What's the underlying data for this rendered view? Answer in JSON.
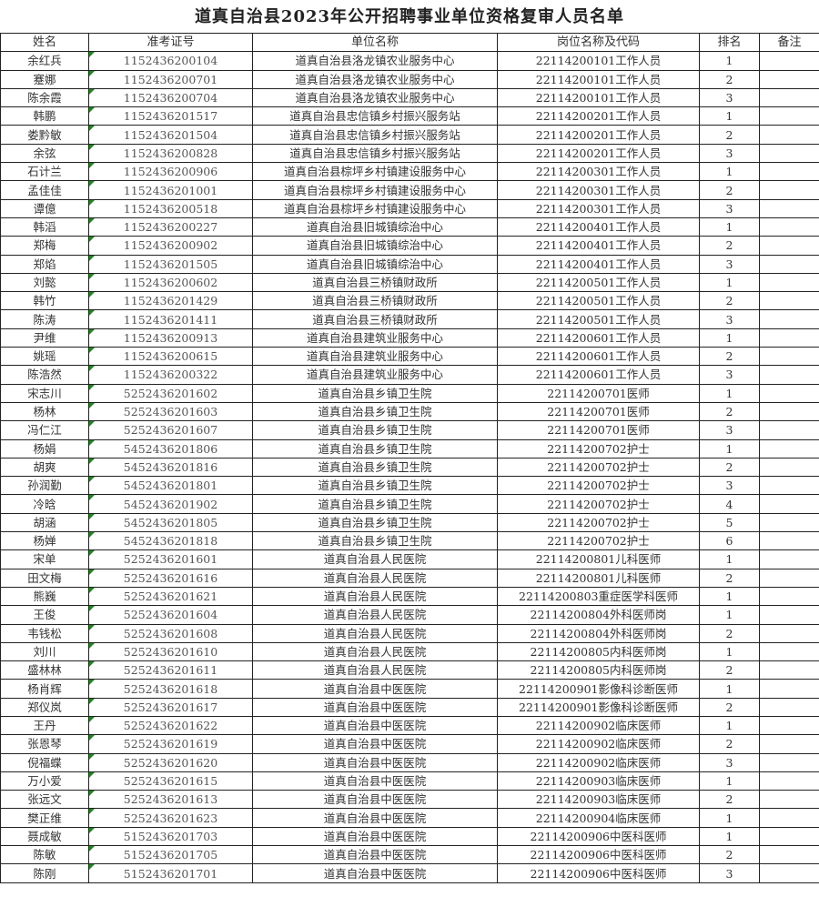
{
  "title": "道真自治县2023年公开招聘事业单位资格复审人员名单",
  "columns": [
    "姓名",
    "准考证号",
    "单位名称",
    "岗位名称及代码",
    "排名",
    "备注"
  ],
  "rows": [
    [
      "余红兵",
      "1152436200104",
      "道真自治县洛龙镇农业服务中心",
      "22114200101工作人员",
      "1",
      ""
    ],
    [
      "蹇娜",
      "1152436200701",
      "道真自治县洛龙镇农业服务中心",
      "22114200101工作人员",
      "2",
      ""
    ],
    [
      "陈余霞",
      "1152436200704",
      "道真自治县洛龙镇农业服务中心",
      "22114200101工作人员",
      "3",
      ""
    ],
    [
      "韩鹏",
      "1152436201517",
      "道真自治县忠信镇乡村振兴服务站",
      "22114200201工作人员",
      "1",
      ""
    ],
    [
      "娄黔敏",
      "1152436201504",
      "道真自治县忠信镇乡村振兴服务站",
      "22114200201工作人员",
      "2",
      ""
    ],
    [
      "余弦",
      "1152436200828",
      "道真自治县忠信镇乡村振兴服务站",
      "22114200201工作人员",
      "3",
      ""
    ],
    [
      "石计兰",
      "1152436200906",
      "道真自治县棕坪乡村镇建设服务中心",
      "22114200301工作人员",
      "1",
      ""
    ],
    [
      "孟佳佳",
      "1152436201001",
      "道真自治县棕坪乡村镇建设服务中心",
      "22114200301工作人员",
      "2",
      ""
    ],
    [
      "谭億",
      "1152436200518",
      "道真自治县棕坪乡村镇建设服务中心",
      "22114200301工作人员",
      "3",
      ""
    ],
    [
      "韩滔",
      "1152436200227",
      "道真自治县旧城镇综治中心",
      "22114200401工作人员",
      "1",
      ""
    ],
    [
      "郑梅",
      "1152436200902",
      "道真自治县旧城镇综治中心",
      "22114200401工作人员",
      "2",
      ""
    ],
    [
      "郑焰",
      "1152436201505",
      "道真自治县旧城镇综治中心",
      "22114200401工作人员",
      "3",
      ""
    ],
    [
      "刘懿",
      "1152436200602",
      "道真自治县三桥镇财政所",
      "22114200501工作人员",
      "1",
      ""
    ],
    [
      "韩竹",
      "1152436201429",
      "道真自治县三桥镇财政所",
      "22114200501工作人员",
      "2",
      ""
    ],
    [
      "陈涛",
      "1152436201411",
      "道真自治县三桥镇财政所",
      "22114200501工作人员",
      "3",
      ""
    ],
    [
      "尹维",
      "1152436200913",
      "道真自治县建筑业服务中心",
      "22114200601工作人员",
      "1",
      ""
    ],
    [
      "姚瑶",
      "1152436200615",
      "道真自治县建筑业服务中心",
      "22114200601工作人员",
      "2",
      ""
    ],
    [
      "陈浩然",
      "1152436200322",
      "道真自治县建筑业服务中心",
      "22114200601工作人员",
      "3",
      ""
    ],
    [
      "宋志川",
      "5252436201602",
      "道真自治县乡镇卫生院",
      "22114200701医师",
      "1",
      ""
    ],
    [
      "杨林",
      "5252436201603",
      "道真自治县乡镇卫生院",
      "22114200701医师",
      "2",
      ""
    ],
    [
      "冯仁江",
      "5252436201607",
      "道真自治县乡镇卫生院",
      "22114200701医师",
      "3",
      ""
    ],
    [
      "杨娟",
      "5452436201806",
      "道真自治县乡镇卫生院",
      "22114200702护士",
      "1",
      ""
    ],
    [
      "胡爽",
      "5452436201816",
      "道真自治县乡镇卫生院",
      "22114200702护士",
      "2",
      ""
    ],
    [
      "孙润勤",
      "5452436201801",
      "道真自治县乡镇卫生院",
      "22114200702护士",
      "3",
      ""
    ],
    [
      "冷晗",
      "5452436201902",
      "道真自治县乡镇卫生院",
      "22114200702护士",
      "4",
      ""
    ],
    [
      "胡涵",
      "5452436201805",
      "道真自治县乡镇卫生院",
      "22114200702护士",
      "5",
      ""
    ],
    [
      "杨婵",
      "5452436201818",
      "道真自治县乡镇卫生院",
      "22114200702护士",
      "6",
      ""
    ],
    [
      "宋单",
      "5252436201601",
      "道真自治县人民医院",
      "22114200801儿科医师",
      "1",
      ""
    ],
    [
      "田文梅",
      "5252436201616",
      "道真自治县人民医院",
      "22114200801儿科医师",
      "2",
      ""
    ],
    [
      "熊巍",
      "5252436201621",
      "道真自治县人民医院",
      "22114200803重症医学科医师",
      "1",
      ""
    ],
    [
      "王俊",
      "5252436201604",
      "道真自治县人民医院",
      "22114200804外科医师岗",
      "1",
      ""
    ],
    [
      "韦钱松",
      "5252436201608",
      "道真自治县人民医院",
      "22114200804外科医师岗",
      "2",
      ""
    ],
    [
      "刘川",
      "5252436201610",
      "道真自治县人民医院",
      "22114200805内科医师岗",
      "1",
      ""
    ],
    [
      "盛林林",
      "5252436201611",
      "道真自治县人民医院",
      "22114200805内科医师岗",
      "2",
      ""
    ],
    [
      "杨肖辉",
      "5252436201618",
      "道真自治县中医医院",
      "22114200901影像科诊断医师",
      "1",
      ""
    ],
    [
      "郑仪岚",
      "5252436201617",
      "道真自治县中医医院",
      "22114200901影像科诊断医师",
      "2",
      ""
    ],
    [
      "王丹",
      "5252436201622",
      "道真自治县中医医院",
      "22114200902临床医师",
      "1",
      ""
    ],
    [
      "张恩琴",
      "5252436201619",
      "道真自治县中医医院",
      "22114200902临床医师",
      "2",
      ""
    ],
    [
      "倪福蝶",
      "5252436201620",
      "道真自治县中医医院",
      "22114200902临床医师",
      "3",
      ""
    ],
    [
      "万小爱",
      "5252436201615",
      "道真自治县中医医院",
      "22114200903临床医师",
      "1",
      ""
    ],
    [
      "张远文",
      "5252436201613",
      "道真自治县中医医院",
      "22114200903临床医师",
      "2",
      ""
    ],
    [
      "樊正维",
      "5252436201623",
      "道真自治县中医医院",
      "22114200904临床医师",
      "1",
      ""
    ],
    [
      "聂成敏",
      "5152436201703",
      "道真自治县中医医院",
      "22114200906中医科医师",
      "1",
      ""
    ],
    [
      "陈敏",
      "5152436201705",
      "道真自治县中医医院",
      "22114200906中医科医师",
      "2",
      ""
    ],
    [
      "陈刚",
      "5152436201701",
      "道真自治县中医医院",
      "22114200906中医科医师",
      "3",
      ""
    ]
  ]
}
